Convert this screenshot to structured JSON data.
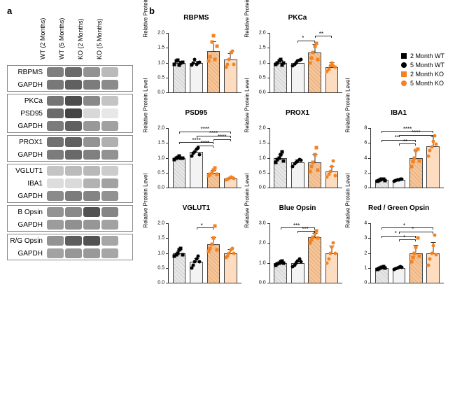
{
  "panelA": {
    "label": "a",
    "lane_headers": [
      "WT (2 Months)",
      "WT (5 Months)",
      "KO (2 Months)",
      "KO (5 Months)"
    ],
    "groups": [
      {
        "rows": [
          {
            "label": "RBPMS",
            "intensities": [
              0.65,
              0.75,
              0.55,
              0.35
            ],
            "color": "#3a3a3a"
          },
          {
            "label": "GAPDH",
            "intensities": [
              0.72,
              0.85,
              0.7,
              0.62
            ],
            "color": "#444"
          }
        ]
      },
      {
        "rows": [
          {
            "label": "PKCa",
            "intensities": [
              0.7,
              0.9,
              0.6,
              0.3
            ],
            "color": "#3a3a3a"
          },
          {
            "label": "PSD95",
            "intensities": [
              0.75,
              0.95,
              0.2,
              0.12
            ],
            "color": "#3a3a3a"
          },
          {
            "label": "GAPDH",
            "intensities": [
              0.7,
              0.85,
              0.55,
              0.5
            ],
            "color": "#444"
          }
        ]
      },
      {
        "rows": [
          {
            "label": "PROX1",
            "intensities": [
              0.72,
              0.8,
              0.55,
              0.4
            ],
            "color": "#3a3a3a"
          },
          {
            "label": "GAPDH",
            "intensities": [
              0.7,
              0.8,
              0.68,
              0.58
            ],
            "color": "#444"
          }
        ]
      },
      {
        "rows": [
          {
            "label": "VGLUT1",
            "intensities": [
              0.35,
              0.4,
              0.42,
              0.3
            ],
            "color": "#555"
          },
          {
            "label": "IBA1",
            "intensities": [
              0.2,
              0.22,
              0.45,
              0.55
            ],
            "color": "#555"
          },
          {
            "label": "GAPDH",
            "intensities": [
              0.62,
              0.7,
              0.66,
              0.58
            ],
            "color": "#444"
          }
        ]
      },
      {
        "rows": [
          {
            "label": "B Opsin",
            "intensities": [
              0.55,
              0.6,
              0.88,
              0.62
            ],
            "color": "#3a3a3a"
          },
          {
            "label": "GAPDH",
            "intensities": [
              0.58,
              0.65,
              0.62,
              0.55
            ],
            "color": "#555"
          }
        ]
      },
      {
        "rows": [
          {
            "label": "R/G Opsin",
            "intensities": [
              0.55,
              0.82,
              0.88,
              0.45
            ],
            "color": "#3a3a3a"
          },
          {
            "label": "GAPDH",
            "intensities": [
              0.55,
              0.62,
              0.6,
              0.52
            ],
            "color": "#555"
          }
        ]
      }
    ]
  },
  "panelB": {
    "label": "b",
    "ylabel": "Relative Protein Level",
    "legend": [
      {
        "label": "2 Month WT",
        "shape": "square",
        "color": "#000000"
      },
      {
        "label": "5 Month WT",
        "shape": "circle",
        "color": "#000000"
      },
      {
        "label": "2 Month KO",
        "shape": "square",
        "color": "#f58220"
      },
      {
        "label": "5 Month KO",
        "shape": "circle",
        "color": "#f58220"
      }
    ],
    "bar_colors": {
      "wt2": "#e8e8e8",
      "wt5": "#f3f3f3",
      "ko2": "#f9c596",
      "ko5": "#fddcc0"
    },
    "charts": [
      {
        "title": "RBPMS",
        "ymax": 2.0,
        "ytick": 0.5,
        "bars": [
          1.0,
          1.0,
          1.4,
          1.1
        ],
        "err": [
          0.08,
          0.08,
          0.35,
          0.25
        ],
        "points": [
          [
            0.95,
            1.05,
            1.08,
            0.92,
            1.0,
            1.02
          ],
          [
            0.92,
            0.98,
            1.1,
            0.95,
            1.0,
            1.02
          ],
          [
            1.05,
            1.2,
            1.7,
            1.9,
            1.1,
            1.55
          ],
          [
            0.85,
            0.95,
            1.1,
            1.35,
            1.4,
            0.95
          ]
        ],
        "sig": []
      },
      {
        "title": "PKCa",
        "ymax": 2.0,
        "ytick": 0.5,
        "bars": [
          1.0,
          1.0,
          1.35,
          0.85
        ],
        "err": [
          0.1,
          0.08,
          0.3,
          0.18
        ],
        "points": [
          [
            0.95,
            1.0,
            1.05,
            1.1,
            0.92,
            1.0
          ],
          [
            0.9,
            0.95,
            1.0,
            1.05,
            1.08,
            1.1
          ],
          [
            1.0,
            1.15,
            1.35,
            1.55,
            1.65,
            1.1
          ],
          [
            0.7,
            0.78,
            0.9,
            1.0,
            0.9,
            0.85
          ]
        ],
        "sig": [
          {
            "from": 1,
            "to": 2,
            "y": 1.75,
            "text": "*"
          },
          {
            "from": 2,
            "to": 3,
            "y": 1.9,
            "text": "**"
          }
        ]
      },
      {
        "title": "",
        "empty": true
      },
      {
        "title": "PSD95",
        "ymax": 2.0,
        "ytick": 0.5,
        "bars": [
          1.0,
          1.2,
          0.5,
          0.3
        ],
        "err": [
          0.05,
          0.12,
          0.12,
          0.06
        ],
        "points": [
          [
            0.95,
            1.0,
            1.02,
            1.05,
            0.98,
            1.0
          ],
          [
            1.05,
            1.15,
            1.2,
            1.3,
            1.35,
            1.1
          ],
          [
            0.4,
            0.45,
            0.5,
            0.6,
            0.65,
            0.45
          ],
          [
            0.25,
            0.28,
            0.3,
            0.35,
            0.32,
            0.3
          ]
        ],
        "sig": [
          {
            "from": 0,
            "to": 2,
            "y": 1.52,
            "text": "****"
          },
          {
            "from": 1,
            "to": 2,
            "y": 1.42,
            "text": "****"
          },
          {
            "from": 0,
            "to": 3,
            "y": 1.88,
            "text": "****"
          },
          {
            "from": 1,
            "to": 3,
            "y": 1.75,
            "text": "****"
          },
          {
            "from": 2,
            "to": 3,
            "y": 1.63,
            "text": "****"
          }
        ]
      },
      {
        "title": "PROX1",
        "ymax": 2.0,
        "ytick": 0.5,
        "bars": [
          1.0,
          0.85,
          0.85,
          0.55
        ],
        "err": [
          0.15,
          0.12,
          0.3,
          0.22
        ],
        "points": [
          [
            0.85,
            0.95,
            1.0,
            1.1,
            1.2,
            0.9
          ],
          [
            0.7,
            0.8,
            0.85,
            0.9,
            0.95,
            0.92
          ],
          [
            0.55,
            0.7,
            0.85,
            1.1,
            1.35,
            0.6
          ],
          [
            0.35,
            0.45,
            0.55,
            0.7,
            0.9,
            0.4
          ]
        ],
        "sig": []
      },
      {
        "title": "IBA1",
        "ymax": 8,
        "ytick": 2,
        "bars": [
          1.0,
          1.0,
          4.0,
          5.6
        ],
        "err": [
          0.15,
          0.15,
          1.2,
          1.4
        ],
        "points": [
          [
            0.85,
            0.95,
            1.0,
            1.1,
            1.15,
            0.95
          ],
          [
            0.85,
            0.9,
            1.0,
            1.05,
            1.15,
            1.1
          ],
          [
            2.8,
            3.5,
            4.0,
            5.0,
            5.2,
            3.6
          ],
          [
            4.2,
            5.0,
            5.5,
            6.2,
            7.0,
            5.8
          ]
        ],
        "sig": [
          {
            "from": 0,
            "to": 2,
            "y": 6.4,
            "text": "**"
          },
          {
            "from": 1,
            "to": 2,
            "y": 5.9,
            "text": "**"
          },
          {
            "from": 0,
            "to": 3,
            "y": 7.6,
            "text": "****"
          },
          {
            "from": 1,
            "to": 3,
            "y": 7.1,
            "text": "****"
          }
        ]
      },
      {
        "title": "VGLUT1",
        "ymax": 2.0,
        "ytick": 0.5,
        "bars": [
          1.0,
          0.7,
          1.3,
          1.0
        ],
        "err": [
          0.12,
          0.15,
          0.25,
          0.15
        ],
        "points": [
          [
            0.9,
            0.95,
            1.0,
            1.1,
            1.15,
            0.95
          ],
          [
            0.5,
            0.6,
            0.7,
            0.8,
            0.9,
            0.7
          ],
          [
            1.05,
            1.15,
            1.3,
            1.5,
            1.9,
            1.1
          ],
          [
            0.85,
            0.9,
            1.0,
            1.1,
            1.15,
            1.0
          ]
        ],
        "sig": [
          {
            "from": 1,
            "to": 2,
            "y": 1.85,
            "text": "*"
          }
        ]
      },
      {
        "title": "Blue Opsin",
        "ymax": 3.0,
        "ytick": 1.0,
        "bars": [
          1.0,
          1.0,
          2.3,
          1.5
        ],
        "err": [
          0.1,
          0.15,
          0.25,
          0.4
        ],
        "points": [
          [
            0.9,
            0.95,
            1.0,
            1.05,
            1.1,
            1.0
          ],
          [
            0.8,
            0.9,
            1.0,
            1.1,
            1.2,
            1.05
          ],
          [
            2.0,
            2.15,
            2.3,
            2.5,
            2.6,
            2.25
          ],
          [
            1.0,
            1.2,
            1.5,
            1.8,
            2.0,
            1.5
          ]
        ],
        "sig": [
          {
            "from": 0,
            "to": 2,
            "y": 2.78,
            "text": "***"
          },
          {
            "from": 1,
            "to": 2,
            "y": 2.6,
            "text": "***"
          }
        ]
      },
      {
        "title": "Red / Green Opsin",
        "ymax": 4.0,
        "ytick": 1.0,
        "bars": [
          1.0,
          1.0,
          2.0,
          2.0
        ],
        "err": [
          0.1,
          0.1,
          0.6,
          0.8
        ],
        "points": [
          [
            0.9,
            0.95,
            1.0,
            1.05,
            1.1,
            1.0
          ],
          [
            0.9,
            0.95,
            1.0,
            1.05,
            1.1,
            1.05
          ],
          [
            1.4,
            1.7,
            2.0,
            2.4,
            3.0,
            1.8
          ],
          [
            1.2,
            1.6,
            2.0,
            2.5,
            3.2,
            1.9
          ]
        ],
        "sig": [
          {
            "from": 0,
            "to": 2,
            "y": 3.15,
            "text": "*"
          },
          {
            "from": 1,
            "to": 2,
            "y": 2.9,
            "text": "*"
          },
          {
            "from": 0,
            "to": 3,
            "y": 3.7,
            "text": "*"
          },
          {
            "from": 1,
            "to": 3,
            "y": 3.45,
            "text": "*"
          }
        ]
      }
    ]
  }
}
